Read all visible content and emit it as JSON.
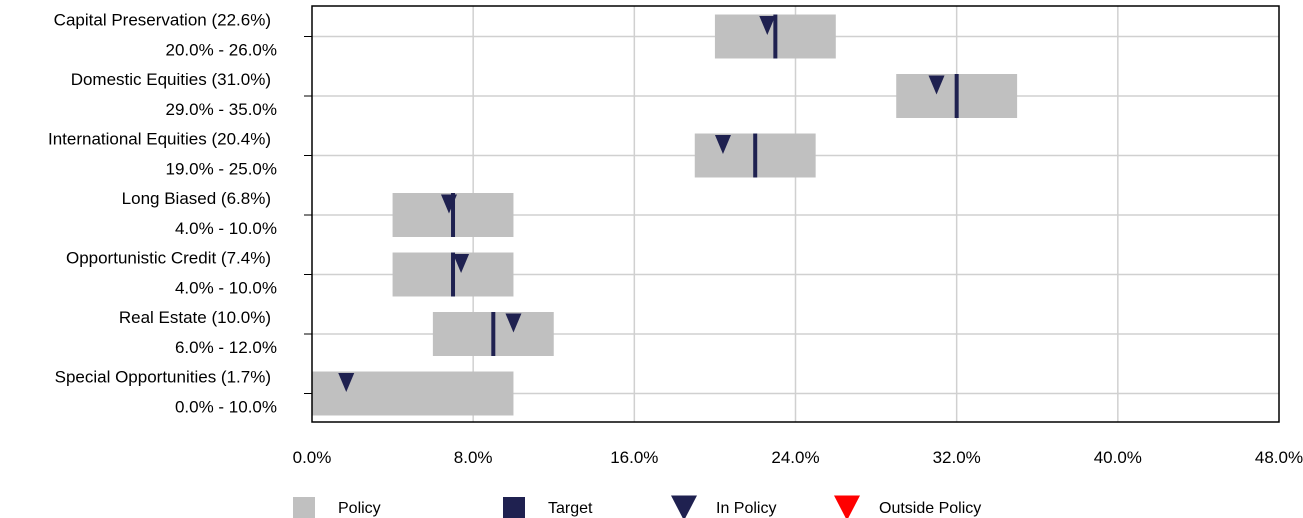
{
  "chart_data": {
    "type": "bar",
    "subtype": "asset-allocation-range",
    "xlim": [
      0,
      48
    ],
    "tick_values": [
      0,
      8,
      16,
      24,
      32,
      40,
      48
    ],
    "tick_labels": [
      "0.0%",
      "8.0%",
      "16.0%",
      "24.0%",
      "32.0%",
      "40.0%",
      "48.0%"
    ],
    "grid": true,
    "legend_position": "bottom",
    "categories": [
      {
        "label": "Capital Preservation (22.6%)",
        "range_label": "20.0% - 26.0%",
        "min": 20.0,
        "max": 26.0,
        "target": 23.0,
        "actual": 22.6,
        "status": "In Policy"
      },
      {
        "label": "Domestic Equities (31.0%)",
        "range_label": "29.0% - 35.0%",
        "min": 29.0,
        "max": 35.0,
        "target": 32.0,
        "actual": 31.0,
        "status": "In Policy"
      },
      {
        "label": "International Equities (20.4%)",
        "range_label": "19.0% - 25.0%",
        "min": 19.0,
        "max": 25.0,
        "target": 22.0,
        "actual": 20.4,
        "status": "In Policy"
      },
      {
        "label": "Long Biased (6.8%)",
        "range_label": "4.0% - 10.0%",
        "min": 4.0,
        "max": 10.0,
        "target": 7.0,
        "actual": 6.8,
        "status": "In Policy"
      },
      {
        "label": "Opportunistic Credit (7.4%)",
        "range_label": "4.0% - 10.0%",
        "min": 4.0,
        "max": 10.0,
        "target": 7.0,
        "actual": 7.4,
        "status": "In Policy"
      },
      {
        "label": "Real Estate (10.0%)",
        "range_label": "6.0% - 12.0%",
        "min": 6.0,
        "max": 12.0,
        "target": 9.0,
        "actual": 10.0,
        "status": "In Policy"
      },
      {
        "label": "Special Opportunities (1.7%)",
        "range_label": "0.0% - 10.0%",
        "min": 0.0,
        "max": 10.0,
        "target": null,
        "actual": 1.7,
        "status": "In Policy"
      }
    ],
    "legend": [
      {
        "key": "policy",
        "label": "Policy",
        "symbol": "square",
        "color": "#c0c0c0"
      },
      {
        "key": "target",
        "label": "Target",
        "symbol": "square",
        "color": "#1f2150"
      },
      {
        "key": "in_policy",
        "label": "In Policy",
        "symbol": "triangle-down",
        "color": "#1f2150"
      },
      {
        "key": "outside_policy",
        "label": "Outside Policy",
        "symbol": "triangle-down",
        "color": "#ff0000"
      }
    ],
    "colors": {
      "policy": "#c0c0c0",
      "target": "#1f2150",
      "in_policy": "#1f2150",
      "outside_policy": "#ff0000",
      "grid": "#d0d0d0",
      "axis": "#000000"
    }
  }
}
